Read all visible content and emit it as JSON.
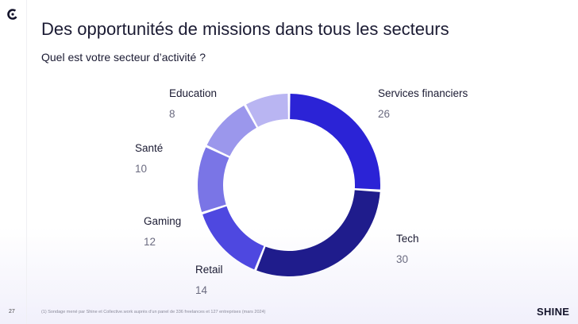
{
  "slide": {
    "title": "Des opportunités de missions dans tous les secteurs",
    "subtitle": "Quel est votre secteur d’activité ?",
    "page_number": "27",
    "footnote": "(1) Sondage mené par Shine et Collective.work auprès d’un panel de 336 freelances et 127 entreprises (mars 2024)",
    "brand": "SHINE",
    "logo_icon": "shine-c-logo-icon"
  },
  "chart_data": {
    "type": "pie",
    "style": "donut",
    "slices": [
      {
        "label": "Services financiers",
        "value": 26,
        "color": "#2b23d6"
      },
      {
        "label": "Tech",
        "value": 30,
        "color": "#1f1c8c"
      },
      {
        "label": "Retail",
        "value": 14,
        "color": "#4e48e0"
      },
      {
        "label": "Gaming",
        "value": 12,
        "color": "#7a75e6"
      },
      {
        "label": "Santé",
        "value": 10,
        "color": "#9b97ec"
      },
      {
        "label": "Education",
        "value": 8,
        "color": "#b9b5f2"
      }
    ]
  }
}
